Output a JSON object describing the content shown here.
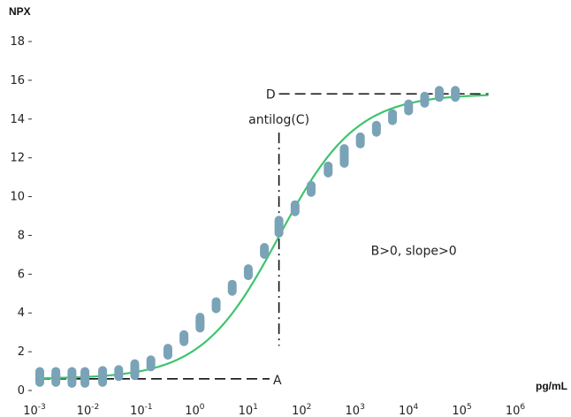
{
  "chart_data": {
    "type": "scatter",
    "ylabel": "NPX",
    "xlabel": "pg/mL",
    "x_scale": "log10",
    "xlim": [
      0.001,
      1000000
    ],
    "ylim": [
      0,
      18
    ],
    "y_ticks": [
      0,
      2,
      4,
      6,
      8,
      10,
      12,
      14,
      16,
      18
    ],
    "x_ticks": [
      {
        "base": "10",
        "exp": "-3"
      },
      {
        "base": "10",
        "exp": "-2"
      },
      {
        "base": "10",
        "exp": "-1"
      },
      {
        "base": "10",
        "exp": "0"
      },
      {
        "base": "10",
        "exp": "1"
      },
      {
        "base": "10",
        "exp": "2"
      },
      {
        "base": "10",
        "exp": "3"
      },
      {
        "base": "10",
        "exp": "4"
      },
      {
        "base": "10",
        "exp": "5"
      },
      {
        "base": "10",
        "exp": "6"
      }
    ],
    "fit_curve": {
      "model": "4PL",
      "A": 0.6,
      "D": 15.3,
      "C": 30,
      "B": 0.6,
      "color": "#3ec46d",
      "x_range": [
        0.001,
        250000
      ]
    },
    "points": {
      "color": "#7aa3b8",
      "x": [
        0.001,
        0.001,
        0.002,
        0.002,
        0.004,
        0.004,
        0.007,
        0.007,
        0.015,
        0.015,
        0.03,
        0.06,
        0.06,
        0.12,
        0.25,
        0.5,
        1,
        1,
        2,
        4,
        8,
        16,
        30,
        30,
        60,
        120,
        250,
        500,
        500,
        1000,
        2000,
        4000,
        8000,
        16000,
        30000,
        60000
      ],
      "y": [
        0.6,
        0.8,
        0.6,
        0.8,
        0.55,
        0.8,
        0.55,
        0.8,
        0.6,
        0.85,
        0.9,
        0.95,
        1.2,
        1.4,
        2.0,
        2.7,
        3.4,
        3.6,
        4.4,
        5.3,
        6.1,
        7.2,
        8.3,
        8.6,
        9.4,
        10.4,
        11.4,
        11.9,
        12.3,
        12.9,
        13.5,
        14.1,
        14.6,
        15.0,
        15.3,
        15.3
      ]
    },
    "annotations": {
      "A": {
        "label": "A",
        "y": 0.6,
        "x_from": 0.001,
        "x_to": 20
      },
      "D": {
        "label": "D",
        "y": 15.3,
        "x_from": 30,
        "x_to": 250000
      },
      "C": {
        "label": "antilog(C)",
        "x": 30,
        "y_from": 2.3,
        "y_to": 13.3
      },
      "note": {
        "text": "B>0, slope>0",
        "x": 10000,
        "y": 7.0
      }
    }
  }
}
